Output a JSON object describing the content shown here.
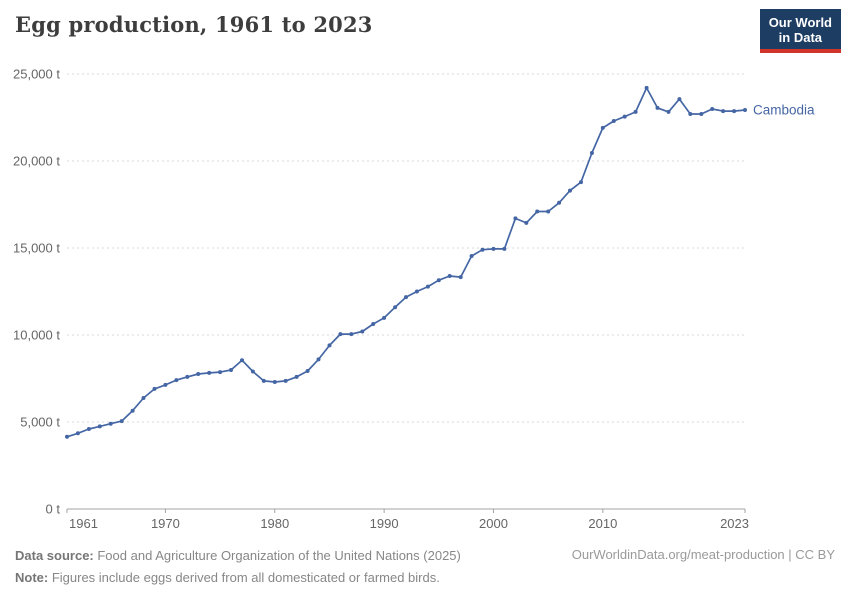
{
  "header": {
    "title": "Egg production, 1961 to 2023",
    "logo": {
      "line1": "Our World",
      "line2": "in Data"
    }
  },
  "footer": {
    "data_source_label": "Data source:",
    "data_source_text": " Food and Agriculture Organization of the United Nations (2025)",
    "note_label": "Note:",
    "note_text": " Figures include eggs derived from all domesticated or farmed birds.",
    "attribution": "OurWorldinData.org/meat-production | CC BY"
  },
  "colors": {
    "line": "#4566a4",
    "grid": "#dadada",
    "axis": "#a3a3a3",
    "tick_label": "#666666",
    "logo_bg": "#1d3d63",
    "logo_accent": "#d0342a",
    "title": "#3d3d3d"
  },
  "chart_data": {
    "type": "line",
    "title": "Egg production, 1961 to 2023",
    "unit": "t",
    "xlabel": "",
    "ylabel": "",
    "grid": true,
    "legend_position": "end-of-line",
    "xlim": [
      1961,
      2023
    ],
    "ylim": [
      0,
      25000
    ],
    "xticks": [
      {
        "value": 1961,
        "label": "1961"
      },
      {
        "value": 1970,
        "label": "1970"
      },
      {
        "value": 1980,
        "label": "1980"
      },
      {
        "value": 1990,
        "label": "1990"
      },
      {
        "value": 2000,
        "label": "2000"
      },
      {
        "value": 2010,
        "label": "2010"
      },
      {
        "value": 2023,
        "label": "2023"
      }
    ],
    "yticks": [
      {
        "value": 0,
        "label": "0 t"
      },
      {
        "value": 5000,
        "label": "5,000 t"
      },
      {
        "value": 10000,
        "label": "10,000 t"
      },
      {
        "value": 15000,
        "label": "15,000 t"
      },
      {
        "value": 20000,
        "label": "20,000 t"
      },
      {
        "value": 25000,
        "label": "25,000 t"
      }
    ],
    "x": [
      1961,
      1962,
      1963,
      1964,
      1965,
      1966,
      1967,
      1968,
      1969,
      1970,
      1971,
      1972,
      1973,
      1974,
      1975,
      1976,
      1977,
      1978,
      1979,
      1980,
      1981,
      1982,
      1983,
      1984,
      1985,
      1986,
      1987,
      1988,
      1989,
      1990,
      1991,
      1992,
      1993,
      1994,
      1995,
      1996,
      1997,
      1998,
      1999,
      2000,
      2001,
      2002,
      2003,
      2004,
      2005,
      2006,
      2007,
      2008,
      2009,
      2010,
      2011,
      2012,
      2013,
      2014,
      2015,
      2016,
      2017,
      2018,
      2019,
      2020,
      2021,
      2022,
      2023
    ],
    "series": [
      {
        "name": "Cambodia",
        "values": [
          4150,
          4350,
          4600,
          4750,
          4900,
          5050,
          5650,
          6380,
          6900,
          7130,
          7410,
          7590,
          7760,
          7820,
          7870,
          7990,
          8550,
          7900,
          7360,
          7300,
          7360,
          7590,
          7930,
          8600,
          9400,
          10050,
          10050,
          10200,
          10630,
          10980,
          11600,
          12180,
          12500,
          12780,
          13150,
          13390,
          13330,
          14540,
          14900,
          14950,
          14950,
          16700,
          16440,
          17100,
          17100,
          17600,
          18300,
          18790,
          20460,
          21900,
          22300,
          22550,
          22820,
          24200,
          23050,
          22820,
          23560,
          22700,
          22700,
          22990,
          22870,
          22870,
          22930
        ]
      }
    ]
  }
}
